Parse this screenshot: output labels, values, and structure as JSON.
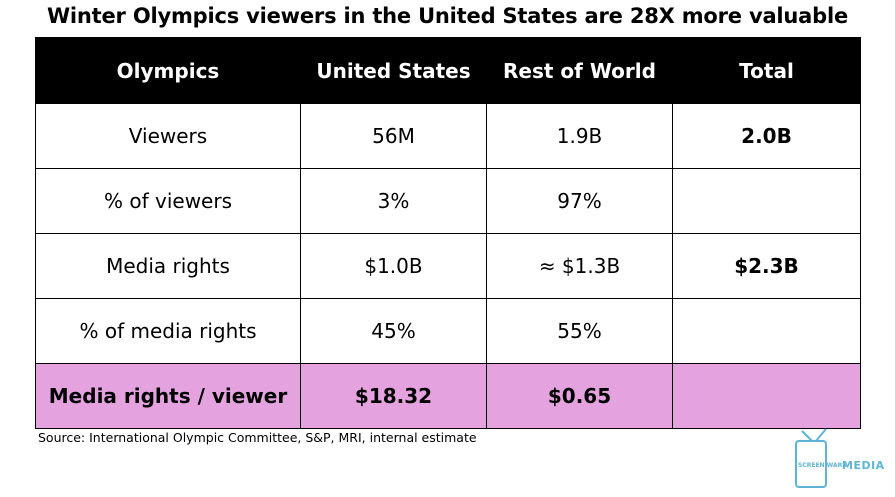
{
  "chart_data": {
    "type": "table",
    "title": "Winter Olympics viewers in the United States are 28X more valuable",
    "columns": [
      "Olympics",
      "United States",
      "Rest of World",
      "Total"
    ],
    "rows": [
      {
        "label": "Viewers",
        "united_states": "56M",
        "rest_of_world": "1.9B",
        "total": "2.0B"
      },
      {
        "label": "% of viewers",
        "united_states": "3%",
        "rest_of_world": "97%",
        "total": ""
      },
      {
        "label": "Media rights",
        "united_states": "$1.0B",
        "rest_of_world": "≈ $1.3B",
        "total": "$2.3B"
      },
      {
        "label": "% of media rights",
        "united_states": "45%",
        "rest_of_world": "55%",
        "total": ""
      },
      {
        "label": "Media rights / viewer",
        "united_states": "$18.32",
        "rest_of_world": "$0.65",
        "total": ""
      }
    ],
    "highlight_row_color": "#e4a2df",
    "header_color": "#000000"
  },
  "source": "Source: International Olympic Committee, S&P, MRI, internal estimate",
  "logo": {
    "line1": "SCREEN WARS",
    "line2": "MEDIA",
    "icon": "tv-icon",
    "color": "#5fb4d6"
  }
}
